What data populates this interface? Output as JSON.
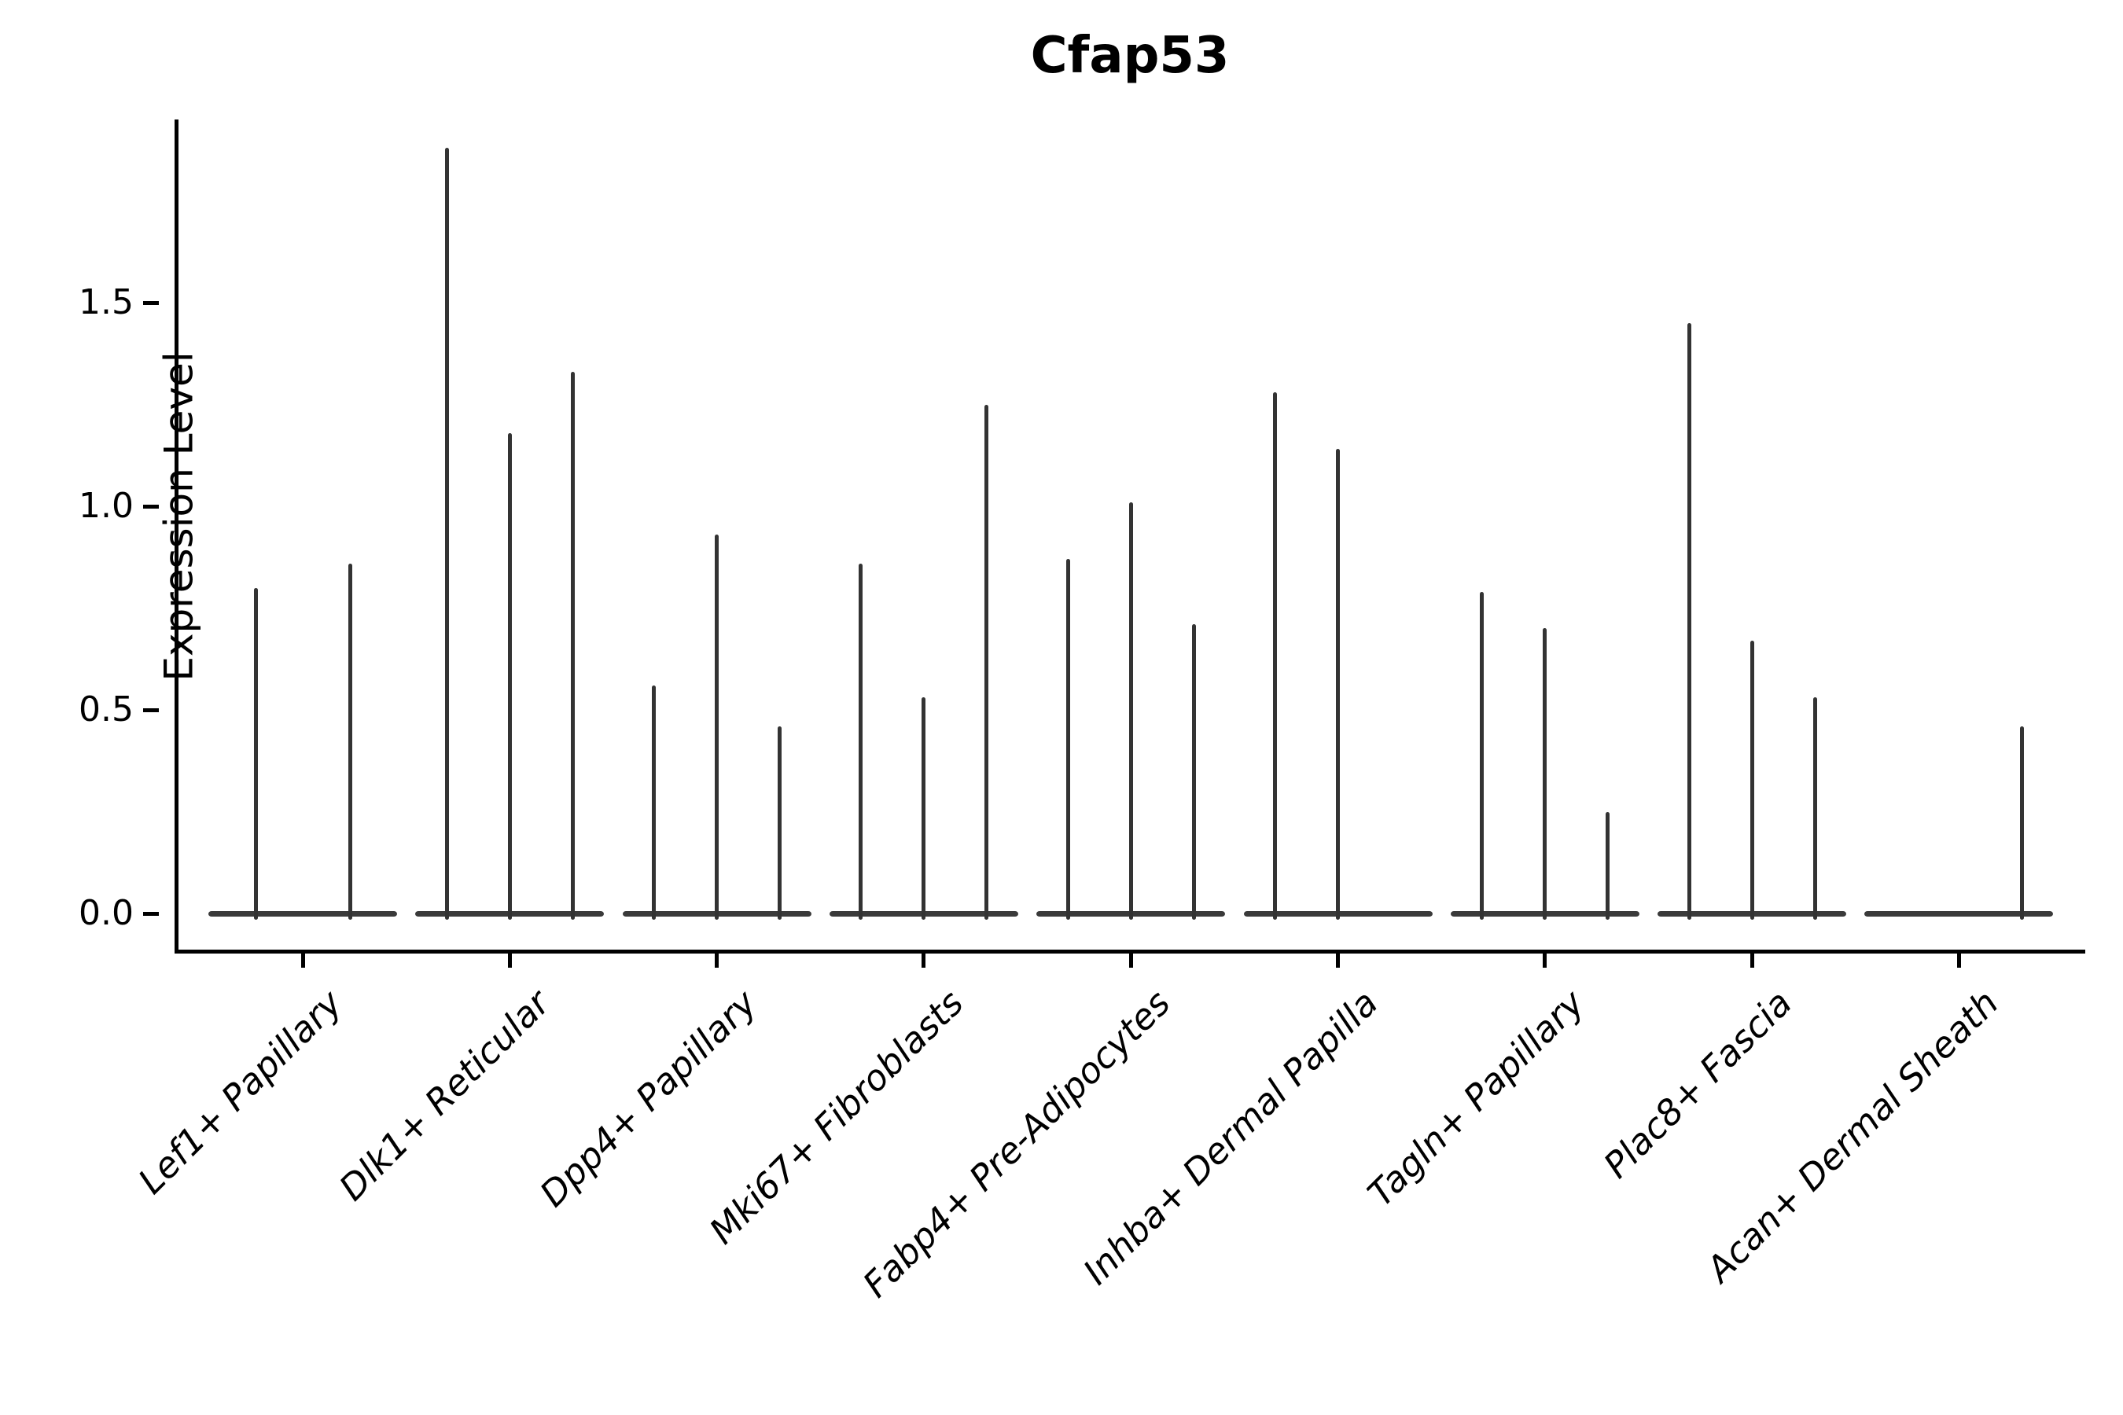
{
  "title": "Cfap53",
  "y_axis": {
    "label": "Expression Level",
    "tick_labels": [
      "0.0",
      "0.5",
      "1.0",
      "1.5"
    ]
  },
  "colors": {
    "violin": "#333333",
    "violin_baseline": "#3a3a3a",
    "axis": "#000000",
    "text": "#000000",
    "background": "#ffffff"
  },
  "chart_data": {
    "type": "violin",
    "title": "Cfap53",
    "xlabel": "",
    "ylabel": "Expression Level",
    "yticks": [
      0.0,
      0.5,
      1.0,
      1.5
    ],
    "ylim": [
      -0.09,
      1.95
    ],
    "grid": false,
    "legend_position": "none",
    "note": "Seurat-style stacked violin of gene expression; each cell-type group holds 2-3 ultra-thin violins (spikes). Values are the maximum expression level reached by each violin spike; 0 means a flat violin at baseline.",
    "categories": [
      "Lef1+ Papillary",
      "Dlk1+ Reticular",
      "Dpp4+ Papillary",
      "Mki67+ Fibroblasts",
      "Fabp4+ Pre-Adipocytes",
      "Inhba+ Dermal Papilla",
      "Tagln+ Papillary",
      "Plac8+ Fascia",
      "Acan+ Dermal Sheath"
    ],
    "groups": [
      {
        "category": "Lef1+ Papillary",
        "violin_maxima": [
          0.8,
          0.86
        ]
      },
      {
        "category": "Dlk1+ Reticular",
        "violin_maxima": [
          1.88,
          1.18,
          1.33
        ]
      },
      {
        "category": "Dpp4+ Papillary",
        "violin_maxima": [
          0.56,
          0.93,
          0.46
        ]
      },
      {
        "category": "Mki67+ Fibroblasts",
        "violin_maxima": [
          0.86,
          0.53,
          1.25
        ]
      },
      {
        "category": "Fabp4+ Pre-Adipocytes",
        "violin_maxima": [
          0.87,
          1.01,
          0.71
        ]
      },
      {
        "category": "Inhba+ Dermal Papilla",
        "violin_maxima": [
          1.28,
          1.14,
          0
        ]
      },
      {
        "category": "Tagln+ Papillary",
        "violin_maxima": [
          0.79,
          0.7,
          0.25
        ]
      },
      {
        "category": "Plac8+ Fascia",
        "violin_maxima": [
          1.45,
          0.67,
          0.53
        ]
      },
      {
        "category": "Acan+ Dermal Sheath",
        "violin_maxima": [
          0,
          0,
          0.46
        ]
      }
    ]
  }
}
